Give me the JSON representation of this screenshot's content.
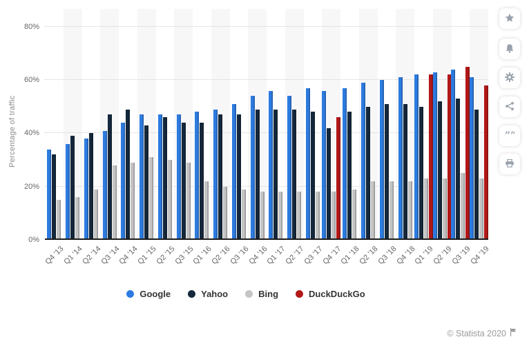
{
  "chart_data": {
    "type": "bar",
    "title": "",
    "ylabel": "Percentage of traffic",
    "categories": [
      "Q4 '13",
      "Q1 '14",
      "Q2 '14",
      "Q3 '14",
      "Q4 '14",
      "Q1 '15",
      "Q2 '15",
      "Q3 '15",
      "Q1 '16",
      "Q2 '16",
      "Q3 '16",
      "Q4 '16",
      "Q1 '17",
      "Q2 '17",
      "Q3 '17",
      "Q4 '17",
      "Q1 '18",
      "Q2 '18",
      "Q3 '18",
      "Q4 '18",
      "Q1 '19",
      "Q2 '19",
      "Q3 '19",
      "Q4 '19"
    ],
    "series": [
      {
        "name": "Google",
        "color": "#2d7be0",
        "values": [
          34,
          36,
          38,
          41,
          44,
          47,
          47,
          47,
          48,
          49,
          51,
          54,
          56,
          54,
          57,
          56,
          57,
          59,
          60,
          61,
          62,
          63,
          64,
          61
        ]
      },
      {
        "name": "Yahoo",
        "color": "#15283c",
        "values": [
          32,
          39,
          40,
          47,
          49,
          43,
          46,
          44,
          44,
          47,
          47,
          49,
          49,
          49,
          48,
          42,
          48,
          50,
          51,
          51,
          50,
          52,
          53,
          49
        ]
      },
      {
        "name": "Bing",
        "color": "#c4c4c4",
        "values": [
          15,
          16,
          19,
          28,
          29,
          31,
          30,
          29,
          22,
          20,
          19,
          18,
          18,
          18,
          18,
          18,
          19,
          22,
          22,
          22,
          23,
          23,
          25,
          23
        ]
      },
      {
        "name": "DuckDuckGo",
        "color": "#b21818",
        "values": [
          null,
          null,
          null,
          null,
          null,
          null,
          null,
          null,
          null,
          null,
          null,
          null,
          null,
          null,
          null,
          46,
          null,
          null,
          null,
          null,
          62,
          62,
          65,
          58
        ]
      }
    ],
    "y_ticks": [
      "0%",
      "20%",
      "40%",
      "60%",
      "80%"
    ],
    "ylim": [
      0,
      86
    ],
    "grid": "horizontal-dotted",
    "legend_position": "bottom",
    "background_stripes": "alternate-groups"
  },
  "sidebar": {
    "icons": [
      "star",
      "bell",
      "gear",
      "share",
      "quote",
      "print"
    ]
  },
  "footer": {
    "credit": "© Statista 2020",
    "flag_icon": "flag"
  }
}
